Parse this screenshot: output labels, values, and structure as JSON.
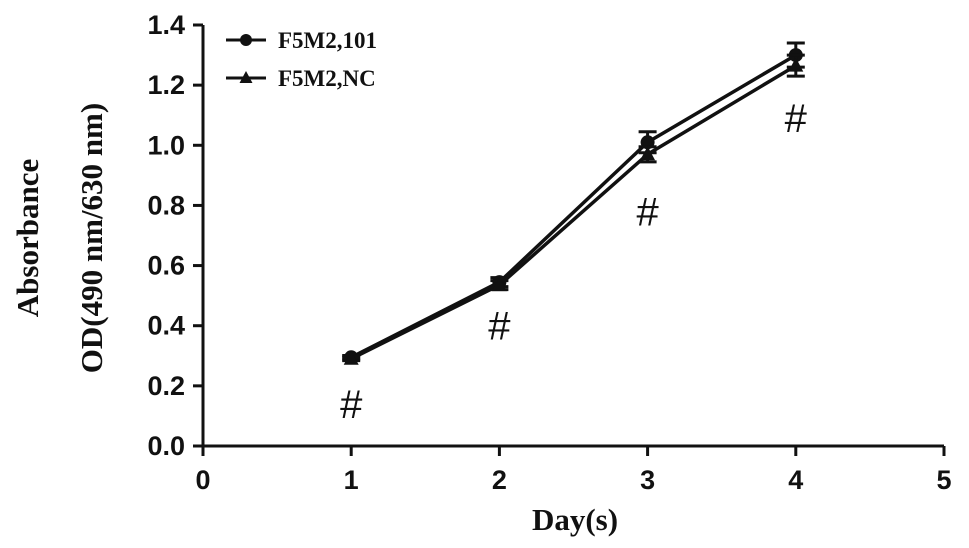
{
  "chart_data": {
    "type": "line",
    "xlabel": "Day(s)",
    "ylabel_lines": [
      "Absorbance",
      "OD(490 nm/630 nm)"
    ],
    "xlim": [
      0,
      5
    ],
    "ylim": [
      0.0,
      1.4
    ],
    "x_ticks": [
      "0",
      "1",
      "2",
      "3",
      "4",
      "5"
    ],
    "y_ticks": [
      "0.0",
      "0.2",
      "0.4",
      "0.6",
      "0.8",
      "1.0",
      "1.2",
      "1.4"
    ],
    "x": [
      1,
      2,
      3,
      4
    ],
    "series": [
      {
        "name": "F5M2,101",
        "marker": "circle",
        "values": [
          0.295,
          0.545,
          1.01,
          1.3
        ],
        "errors": [
          0.006,
          0.015,
          0.035,
          0.04
        ]
      },
      {
        "name": "F5M2,NC",
        "marker": "triangle",
        "values": [
          0.29,
          0.535,
          0.97,
          1.265
        ],
        "errors": [
          0.006,
          0.015,
          0.025,
          0.035
        ]
      }
    ],
    "annotations": [
      {
        "text": "#",
        "x": 1,
        "y": 0.14
      },
      {
        "text": "#",
        "x": 2,
        "y": 0.4
      },
      {
        "text": "#",
        "x": 3,
        "y": 0.78
      },
      {
        "text": "#",
        "x": 4,
        "y": 1.09
      }
    ],
    "legend_position": "top-left",
    "grid": false,
    "colors": {
      "line": "#111111",
      "background": "#ffffff"
    }
  }
}
